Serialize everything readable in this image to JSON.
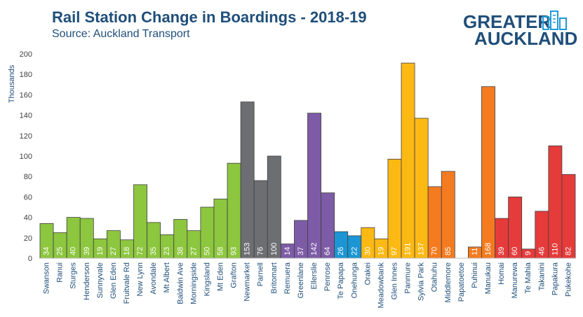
{
  "header": {
    "title": "Rail Station Change in Boardings - 2018-19",
    "subtitle": "Source: Auckland Transport"
  },
  "logo": {
    "line1": "GREATER",
    "line2": "AUCKLAND",
    "icon": "city-buildings-icon"
  },
  "chart_data": {
    "type": "bar",
    "title": "Rail Station Change in Boardings - 2018-19",
    "subtitle": "Source: Auckland Transport",
    "ylabel": "Thousands",
    "xlabel": "",
    "ylim": [
      0,
      200
    ],
    "yticks": [
      0,
      20,
      40,
      60,
      80,
      100,
      120,
      140,
      160,
      180,
      200
    ],
    "grid": false,
    "legend": "none",
    "categories": [
      "Swanson",
      "Ranui",
      "Sturges",
      "Henderson",
      "Sunnyvale",
      "Glen Eden",
      "Fruitvale Rd",
      "New Lynn",
      "Avondale",
      "Mt Albert",
      "Baldwin Ave",
      "Morningside",
      "Kingsland",
      "Mt Eden",
      "Grafton",
      "Newmarket",
      "Parnell",
      "Britomart",
      "Remuera",
      "Greenlane",
      "Ellerslie",
      "Penrose",
      "Te Papapa",
      "Onehunga",
      "Orakei",
      "Meadowbank",
      "Glen Innes",
      "Panmure",
      "Sylvia Park",
      "Otahuhu",
      "Middlemore",
      "Papatoetoe",
      "Puhinui",
      "Manukau",
      "Homai",
      "Manurewa",
      "Te Mahia",
      "Takanini",
      "Papakura",
      "Pukekohe"
    ],
    "values": [
      34,
      25,
      40,
      39,
      19,
      27,
      18,
      72,
      35,
      23,
      38,
      27,
      50,
      58,
      93,
      153,
      76,
      100,
      14,
      37,
      142,
      64,
      26,
      22,
      30,
      19,
      97,
      191,
      137,
      70,
      85,
      0,
      11,
      168,
      39,
      60,
      9,
      46,
      110,
      82
    ],
    "labels": [
      "34",
      "25",
      "40",
      "39",
      "19",
      "27",
      "18",
      "72",
      "35",
      "23",
      "38",
      "27",
      "50",
      "58",
      "93",
      "153",
      "76",
      "100",
      "14",
      "37",
      "142",
      "64",
      "26",
      "22",
      "30",
      "19",
      "97",
      "191",
      "137",
      "70",
      "85",
      "",
      "11",
      "168",
      "39",
      "60",
      "9",
      "46",
      "110",
      "82"
    ],
    "colors": [
      "#8dc63f",
      "#8dc63f",
      "#8dc63f",
      "#8dc63f",
      "#8dc63f",
      "#8dc63f",
      "#8dc63f",
      "#8dc63f",
      "#8dc63f",
      "#8dc63f",
      "#8dc63f",
      "#8dc63f",
      "#8dc63f",
      "#8dc63f",
      "#8dc63f",
      "#6d6e71",
      "#6d6e71",
      "#6d6e71",
      "#7d5ba6",
      "#7d5ba6",
      "#7d5ba6",
      "#7d5ba6",
      "#1b95d3",
      "#1b95d3",
      "#fdb913",
      "#fdb913",
      "#fdb913",
      "#fdb913",
      "#fdb913",
      "#f47b20",
      "#f47b20",
      "#f47b20",
      "#f47b20",
      "#f47b20",
      "#e53b3b",
      "#e53b3b",
      "#e53b3b",
      "#e53b3b",
      "#e53b3b",
      "#e53b3b"
    ]
  }
}
